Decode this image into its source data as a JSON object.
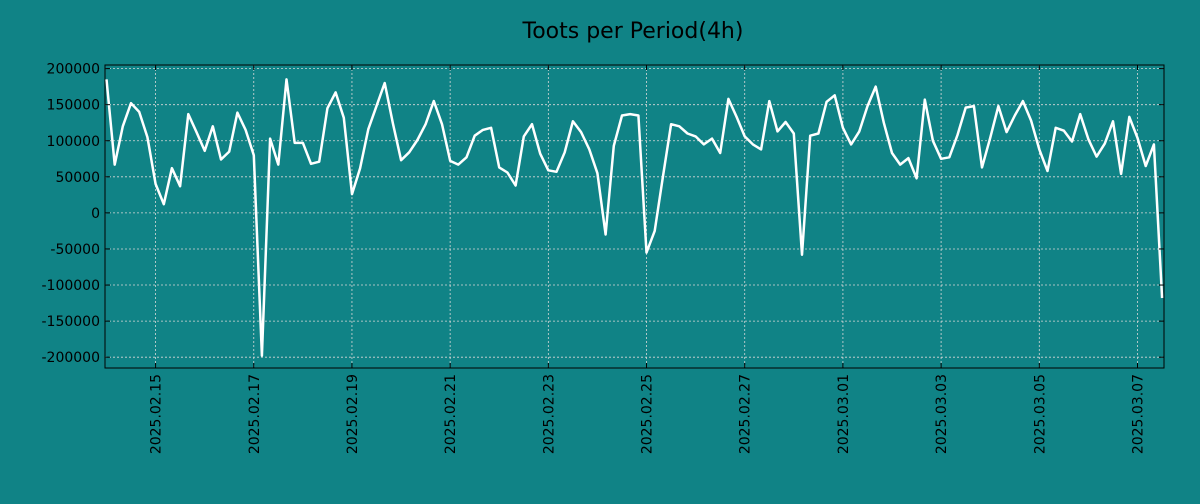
{
  "colors": {
    "background": "#108386",
    "line": "#ffffff",
    "grid": "#d8d8d8",
    "axis": "#000000"
  },
  "chart_data": {
    "type": "line",
    "title": "Toots per Period(4h)",
    "xlabel": "",
    "ylabel": "",
    "ylim": [
      -215000,
      205000
    ],
    "yticks": [
      200000,
      150000,
      100000,
      50000,
      0,
      -50000,
      -100000,
      -150000,
      -200000
    ],
    "ytick_labels": [
      "200000",
      "150000",
      "100000",
      "50000",
      "0",
      "-50000",
      "-100000",
      "-150000",
      "-200000"
    ],
    "x_unit": "days since 2025.02.14 00:00",
    "xlim": [
      -0.03,
      21.54
    ],
    "xticks": [
      {
        "x": 1,
        "label": "2025.02.15"
      },
      {
        "x": 3,
        "label": "2025.02.17"
      },
      {
        "x": 5,
        "label": "2025.02.19"
      },
      {
        "x": 7,
        "label": "2025.02.21"
      },
      {
        "x": 9,
        "label": "2025.02.23"
      },
      {
        "x": 11,
        "label": "2025.02.25"
      },
      {
        "x": 13,
        "label": "2025.02.27"
      },
      {
        "x": 15,
        "label": "2025.03.01"
      },
      {
        "x": 17,
        "label": "2025.03.03"
      },
      {
        "x": 19,
        "label": "2025.03.05"
      },
      {
        "x": 21,
        "label": "2025.03.07"
      }
    ],
    "series": [
      {
        "name": "Toots",
        "x_start": 0,
        "x_step": 0.16667,
        "values": [
          185000,
          67000,
          120000,
          152000,
          140000,
          105000,
          40000,
          12000,
          62000,
          37000,
          137000,
          112000,
          86000,
          120000,
          74000,
          85000,
          139000,
          115000,
          80000,
          -198000,
          103000,
          67000,
          185000,
          97000,
          97000,
          68000,
          71000,
          145000,
          167000,
          132000,
          26000,
          62000,
          116000,
          148000,
          180000,
          124000,
          73000,
          84000,
          101000,
          123000,
          155000,
          123000,
          72000,
          67000,
          77000,
          107000,
          115000,
          118000,
          63000,
          56000,
          38000,
          106000,
          123000,
          82000,
          59000,
          57000,
          84000,
          127000,
          112000,
          88000,
          55000,
          -30000,
          93000,
          135000,
          137000,
          135000,
          -55000,
          -25000,
          50000,
          123000,
          120000,
          110000,
          106000,
          95000,
          103000,
          83000,
          158000,
          133000,
          106000,
          95000,
          88000,
          155000,
          113000,
          126000,
          110000,
          -58000,
          107000,
          110000,
          154000,
          163000,
          118000,
          95000,
          113000,
          148000,
          175000,
          125000,
          83000,
          67000,
          76000,
          48000,
          157000,
          100000,
          75000,
          77000,
          108000,
          146000,
          148000,
          63000,
          104000,
          148000,
          112000,
          135000,
          155000,
          128000,
          88000,
          58000,
          118000,
          114000,
          99000,
          137000,
          102000,
          78000,
          96000,
          127000,
          54000,
          133000,
          104000,
          65000,
          95000,
          -118000
        ]
      }
    ]
  }
}
